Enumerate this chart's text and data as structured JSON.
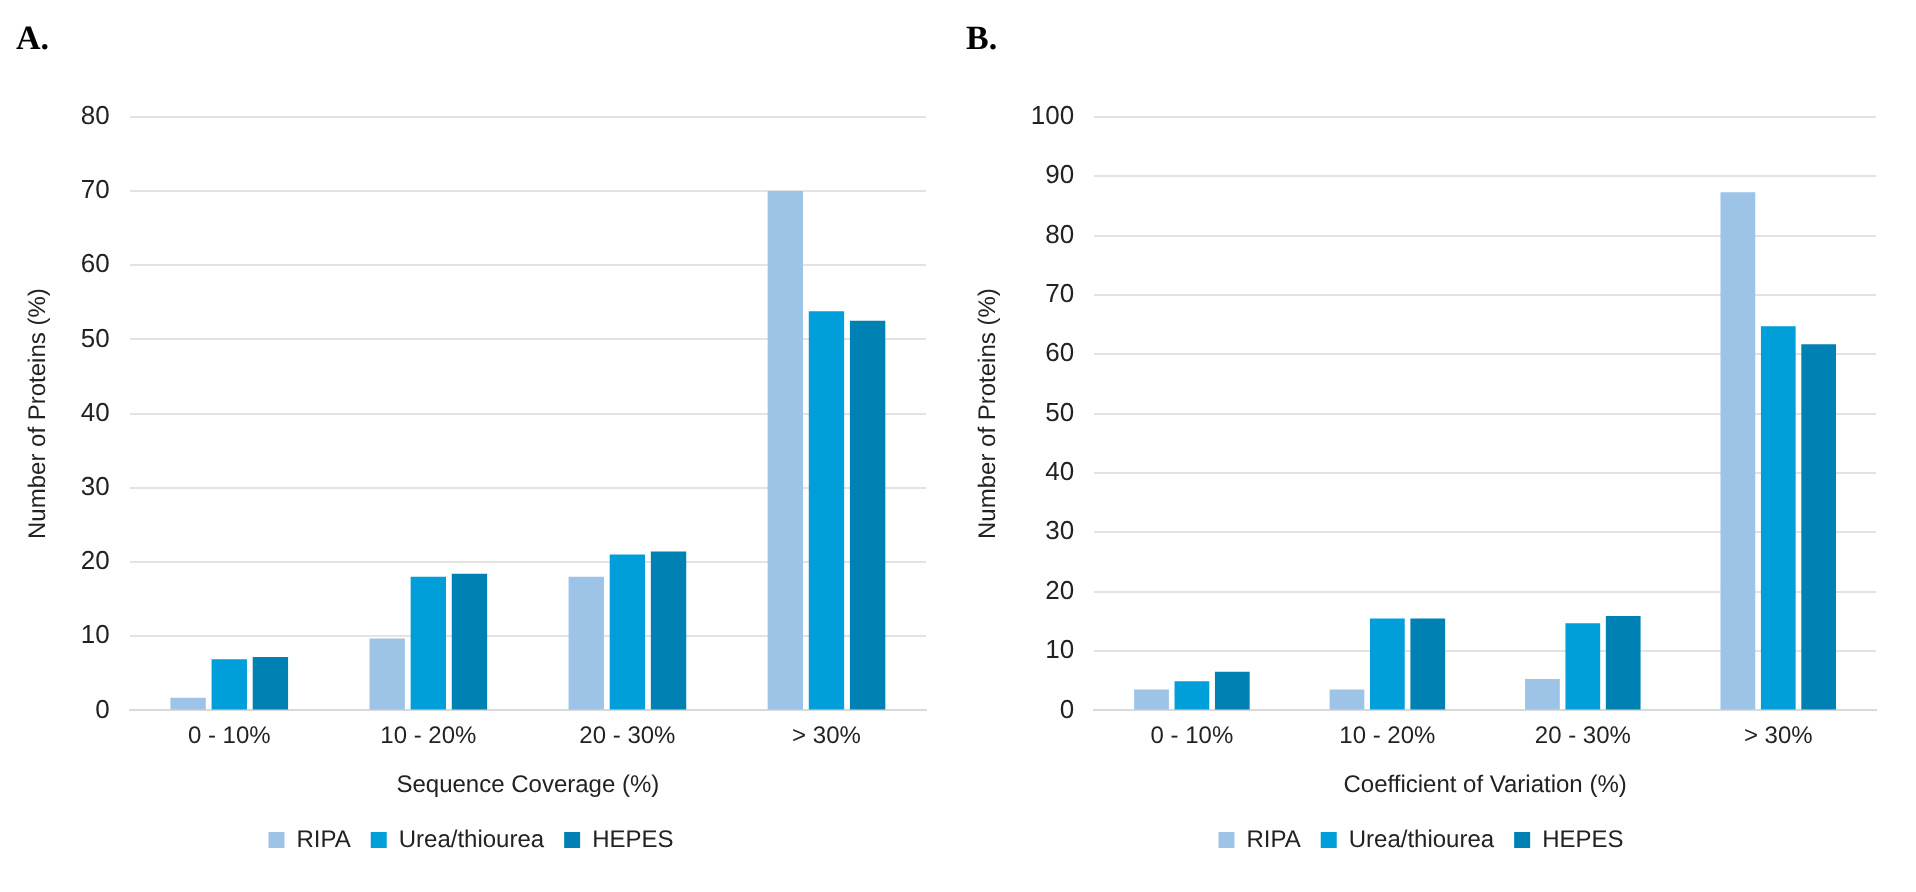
{
  "chart_data": [
    {
      "type": "bar",
      "title": "A.",
      "xlabel": "Sequence Coverage (%)",
      "ylabel": "Number of Proteins (%)",
      "categories": [
        "0 - 10%",
        "10 - 20%",
        "20 - 30%",
        "> 30%"
      ],
      "series": [
        {
          "name": "RIPA",
          "color": "#9dc3e6",
          "values": [
            1.7,
            9.7,
            18,
            70
          ]
        },
        {
          "name": "Urea/thiourea",
          "color": "#009fd9",
          "values": [
            6.9,
            18,
            21,
            53.8
          ]
        },
        {
          "name": "HEPES",
          "color": "#0081b4",
          "values": [
            7.2,
            18.4,
            21.4,
            52.5
          ]
        }
      ],
      "ylim": [
        0,
        80
      ],
      "yticks": [
        0,
        10,
        20,
        30,
        40,
        50,
        60,
        70,
        80
      ],
      "grid": "y",
      "legend": "bottom"
    },
    {
      "type": "bar",
      "title": "B.",
      "xlabel": "Coefficient of Variation (%)",
      "ylabel": "Number of Proteins (%)",
      "categories": [
        "0 - 10%",
        "10 - 20%",
        "20 - 30%",
        "> 30%"
      ],
      "series": [
        {
          "name": "RIPA",
          "color": "#9dc3e6",
          "values": [
            3.5,
            3.5,
            5.3,
            87.3
          ]
        },
        {
          "name": "Urea/thiourea",
          "color": "#009fd9",
          "values": [
            4.9,
            15.5,
            14.7,
            64.7
          ]
        },
        {
          "name": "HEPES",
          "color": "#0081b4",
          "values": [
            6.5,
            15.5,
            15.9,
            61.7
          ]
        }
      ],
      "ylim": [
        0,
        100
      ],
      "yticks": [
        0,
        10,
        20,
        30,
        40,
        50,
        60,
        70,
        80,
        90,
        100
      ],
      "grid": "y",
      "legend": "bottom"
    }
  ]
}
